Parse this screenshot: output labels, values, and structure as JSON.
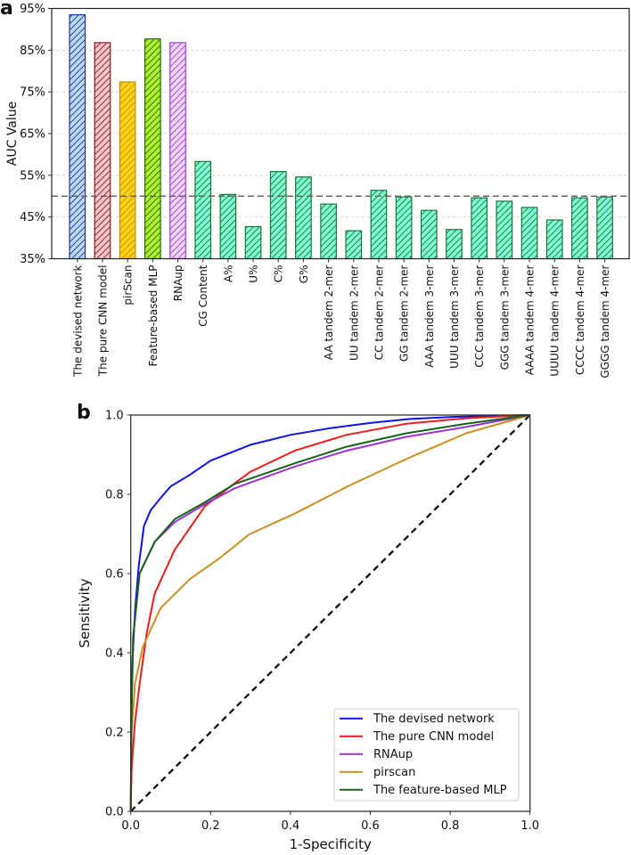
{
  "chart_data": [
    {
      "panel_label": "a",
      "type": "bar",
      "ylabel": "AUC Value",
      "xlabel": "",
      "ylim": [
        35,
        95
      ],
      "yticks": [
        "35%",
        "45%",
        "55%",
        "65%",
        "75%",
        "85%",
        "95%"
      ],
      "grid": "horizontal dashed",
      "reference_line": 50,
      "hatch": "diagonal",
      "categories": [
        "The devised network",
        "The pure CNN model",
        "pirScan",
        "Feature-based MLP",
        "RNAup",
        "CG Content",
        "A%",
        "U%",
        "C%",
        "G%",
        "AA tandem 2-mer",
        "UU tandem 2-mer",
        "CC tandem 2-mer",
        "GG tandem 2-mer",
        "AAA tandem 3-mer",
        "UUU tandem 3-mer",
        "CCC tandem 3-mer",
        "GGG tandem 3-mer",
        "AAAA tandem 4-mer",
        "UUUU tandem 4-mer",
        "CCCC tandem 4-mer",
        "GGGG tandem 4-mer"
      ],
      "values": [
        93.5,
        86.8,
        77.4,
        87.7,
        86.8,
        58.3,
        50.4,
        42.7,
        55.9,
        54.6,
        48.1,
        41.7,
        51.4,
        49.8,
        46.6,
        42.0,
        49.6,
        48.8,
        47.3,
        44.3,
        49.6,
        49.8
      ],
      "colors": {
        "fills": [
          "#b9d9f0",
          "#f8c3c9",
          "#ffd21a",
          "#aef22e",
          "#f0d6f8",
          "#7fffd4"
        ],
        "edges": [
          "#1f3596",
          "#7d1f24",
          "#c49000",
          "#2b6a10",
          "#a23ee0",
          "#1d7040"
        ]
      }
    },
    {
      "panel_label": "b",
      "type": "line",
      "xlabel": "1-Specificity",
      "ylabel": "Sensitivity",
      "xlim": [
        0,
        1
      ],
      "ylim": [
        0,
        1
      ],
      "xticks": [
        "0.0",
        "0.2",
        "0.4",
        "0.6",
        "0.8",
        "1.0"
      ],
      "yticks": [
        "0.0",
        "0.2",
        "0.4",
        "0.6",
        "0.8",
        "1.0"
      ],
      "legend": "bottom-right",
      "diagonal_reference": true,
      "series": [
        {
          "name": "The devised network",
          "color": "#1010ee",
          "points": [
            [
              0,
              0
            ],
            [
              0.003,
              0.35
            ],
            [
              0.011,
              0.51
            ],
            [
              0.02,
              0.62
            ],
            [
              0.033,
              0.72
            ],
            [
              0.05,
              0.76
            ],
            [
              0.074,
              0.79
            ],
            [
              0.1,
              0.82
            ],
            [
              0.149,
              0.85
            ],
            [
              0.2,
              0.885
            ],
            [
              0.3,
              0.925
            ],
            [
              0.4,
              0.95
            ],
            [
              0.5,
              0.967
            ],
            [
              0.6,
              0.98
            ],
            [
              0.7,
              0.99
            ],
            [
              0.8,
              0.995
            ],
            [
              0.9,
              0.998
            ],
            [
              1,
              1
            ]
          ]
        },
        {
          "name": "The pure CNN model",
          "color": "#ee1c1c",
          "points": [
            [
              0,
              0
            ],
            [
              0.002,
              0.1
            ],
            [
              0.01,
              0.22
            ],
            [
              0.022,
              0.32
            ],
            [
              0.04,
              0.45
            ],
            [
              0.06,
              0.55
            ],
            [
              0.11,
              0.66
            ],
            [
              0.186,
              0.77
            ],
            [
              0.25,
              0.82
            ],
            [
              0.3,
              0.857
            ],
            [
              0.41,
              0.91
            ],
            [
              0.54,
              0.95
            ],
            [
              0.69,
              0.978
            ],
            [
              0.84,
              0.992
            ],
            [
              1,
              1
            ]
          ]
        },
        {
          "name": "RNAup",
          "color": "#9b30d8",
          "points": [
            [
              0,
              0
            ],
            [
              0.002,
              0.25
            ],
            [
              0.006,
              0.44
            ],
            [
              0.022,
              0.6
            ],
            [
              0.06,
              0.68
            ],
            [
              0.11,
              0.73
            ],
            [
              0.186,
              0.775
            ],
            [
              0.26,
              0.815
            ],
            [
              0.41,
              0.87
            ],
            [
              0.54,
              0.91
            ],
            [
              0.69,
              0.945
            ],
            [
              0.84,
              0.97
            ],
            [
              1,
              1
            ]
          ]
        },
        {
          "name": "pirscan",
          "color": "#c8901e",
          "points": [
            [
              0,
              0
            ],
            [
              0.002,
              0.2
            ],
            [
              0.011,
              0.324
            ],
            [
              0.03,
              0.414
            ],
            [
              0.074,
              0.512
            ],
            [
              0.149,
              0.587
            ],
            [
              0.223,
              0.639
            ],
            [
              0.297,
              0.699
            ],
            [
              0.41,
              0.751
            ],
            [
              0.543,
              0.82
            ],
            [
              0.692,
              0.89
            ],
            [
              0.84,
              0.954
            ],
            [
              1,
              1
            ]
          ]
        },
        {
          "name": "The feature-based MLP",
          "color": "#17621a",
          "points": [
            [
              0,
              0
            ],
            [
              0.002,
              0.25
            ],
            [
              0.006,
              0.44
            ],
            [
              0.022,
              0.6
            ],
            [
              0.06,
              0.68
            ],
            [
              0.11,
              0.737
            ],
            [
              0.186,
              0.78
            ],
            [
              0.26,
              0.826
            ],
            [
              0.41,
              0.878
            ],
            [
              0.54,
              0.92
            ],
            [
              0.69,
              0.954
            ],
            [
              0.84,
              0.978
            ],
            [
              1,
              1
            ]
          ]
        }
      ]
    }
  ]
}
